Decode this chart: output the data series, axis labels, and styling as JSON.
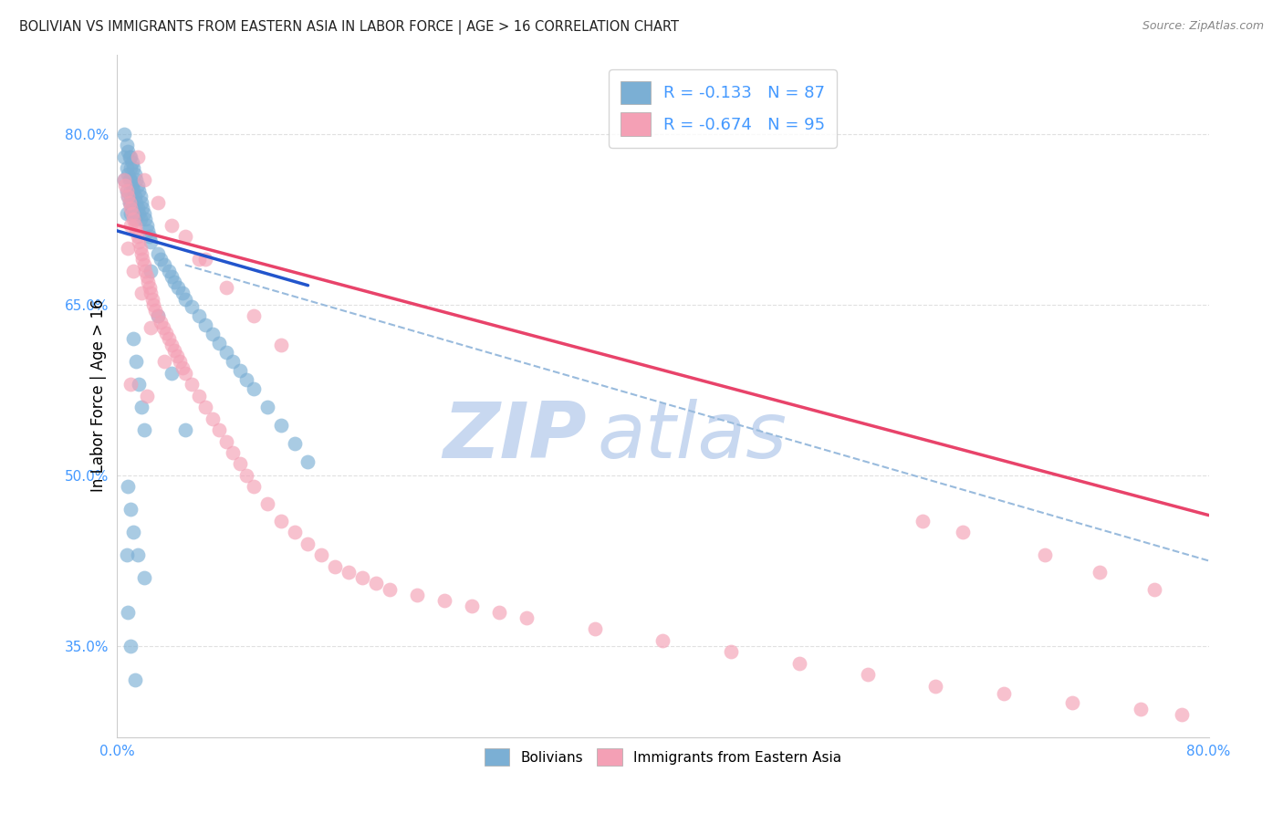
{
  "title": "BOLIVIAN VS IMMIGRANTS FROM EASTERN ASIA IN LABOR FORCE | AGE > 16 CORRELATION CHART",
  "source": "Source: ZipAtlas.com",
  "ylabel": "In Labor Force | Age > 16",
  "yticks": [
    "80.0%",
    "65.0%",
    "50.0%",
    "35.0%"
  ],
  "ytick_vals": [
    0.8,
    0.65,
    0.5,
    0.35
  ],
  "xlim": [
    0.0,
    0.8
  ],
  "ylim": [
    0.27,
    0.87
  ],
  "bolivian_R": -0.133,
  "bolivian_N": 87,
  "eastern_asia_R": -0.674,
  "eastern_asia_N": 95,
  "bolivian_color": "#7bafd4",
  "eastern_asia_color": "#f4a0b5",
  "bolivian_line_color": "#2255cc",
  "eastern_asia_line_color": "#e8436a",
  "dashed_line_color": "#99bbdd",
  "watermark_zip": "ZIP",
  "watermark_atlas": "atlas",
  "watermark_color": "#c8d8f0",
  "grid_color": "#dddddd",
  "background_color": "#ffffff",
  "title_color": "#222222",
  "tick_color": "#4499ff",
  "blue_line_x": [
    0.0,
    0.14
  ],
  "blue_line_y": [
    0.715,
    0.667
  ],
  "pink_line_x": [
    0.0,
    0.8
  ],
  "pink_line_y": [
    0.72,
    0.465
  ],
  "dashed_line_x": [
    0.05,
    0.8
  ],
  "dashed_line_y": [
    0.685,
    0.425
  ],
  "bolivian_x": [
    0.005,
    0.005,
    0.005,
    0.007,
    0.007,
    0.007,
    0.007,
    0.008,
    0.008,
    0.008,
    0.009,
    0.009,
    0.009,
    0.01,
    0.01,
    0.01,
    0.01,
    0.01,
    0.01,
    0.011,
    0.011,
    0.011,
    0.012,
    0.012,
    0.012,
    0.013,
    0.013,
    0.013,
    0.014,
    0.014,
    0.015,
    0.015,
    0.016,
    0.016,
    0.017,
    0.017,
    0.018,
    0.019,
    0.02,
    0.021,
    0.022,
    0.023,
    0.024,
    0.025,
    0.03,
    0.032,
    0.035,
    0.038,
    0.04,
    0.042,
    0.045,
    0.048,
    0.05,
    0.055,
    0.06,
    0.065,
    0.07,
    0.075,
    0.08,
    0.085,
    0.09,
    0.095,
    0.1,
    0.11,
    0.12,
    0.13,
    0.14,
    0.012,
    0.014,
    0.016,
    0.018,
    0.02,
    0.008,
    0.01,
    0.012,
    0.015,
    0.02,
    0.025,
    0.03,
    0.04,
    0.05,
    0.008,
    0.01,
    0.013,
    0.007
  ],
  "bolivian_y": [
    0.8,
    0.78,
    0.76,
    0.79,
    0.77,
    0.75,
    0.73,
    0.785,
    0.765,
    0.745,
    0.78,
    0.76,
    0.74,
    0.78,
    0.77,
    0.76,
    0.75,
    0.74,
    0.73,
    0.775,
    0.755,
    0.735,
    0.77,
    0.75,
    0.73,
    0.765,
    0.745,
    0.725,
    0.76,
    0.74,
    0.755,
    0.735,
    0.75,
    0.73,
    0.745,
    0.725,
    0.74,
    0.735,
    0.73,
    0.725,
    0.72,
    0.715,
    0.71,
    0.705,
    0.695,
    0.69,
    0.685,
    0.68,
    0.675,
    0.67,
    0.665,
    0.66,
    0.655,
    0.648,
    0.64,
    0.632,
    0.624,
    0.616,
    0.608,
    0.6,
    0.592,
    0.584,
    0.576,
    0.56,
    0.544,
    0.528,
    0.512,
    0.62,
    0.6,
    0.58,
    0.56,
    0.54,
    0.49,
    0.47,
    0.45,
    0.43,
    0.41,
    0.68,
    0.64,
    0.59,
    0.54,
    0.38,
    0.35,
    0.32,
    0.43
  ],
  "eastern_asia_x": [
    0.005,
    0.006,
    0.007,
    0.008,
    0.009,
    0.01,
    0.01,
    0.011,
    0.012,
    0.013,
    0.014,
    0.015,
    0.016,
    0.017,
    0.018,
    0.019,
    0.02,
    0.021,
    0.022,
    0.023,
    0.024,
    0.025,
    0.026,
    0.027,
    0.028,
    0.03,
    0.032,
    0.034,
    0.036,
    0.038,
    0.04,
    0.042,
    0.044,
    0.046,
    0.048,
    0.05,
    0.055,
    0.06,
    0.065,
    0.07,
    0.075,
    0.08,
    0.085,
    0.09,
    0.095,
    0.1,
    0.11,
    0.12,
    0.13,
    0.14,
    0.15,
    0.16,
    0.17,
    0.18,
    0.19,
    0.2,
    0.22,
    0.24,
    0.26,
    0.28,
    0.3,
    0.35,
    0.4,
    0.45,
    0.5,
    0.55,
    0.6,
    0.65,
    0.7,
    0.75,
    0.78,
    0.008,
    0.012,
    0.018,
    0.025,
    0.035,
    0.05,
    0.065,
    0.08,
    0.1,
    0.12,
    0.015,
    0.02,
    0.03,
    0.04,
    0.06,
    0.59,
    0.62,
    0.68,
    0.72,
    0.76,
    0.01,
    0.022
  ],
  "eastern_asia_y": [
    0.76,
    0.755,
    0.75,
    0.745,
    0.74,
    0.735,
    0.72,
    0.73,
    0.725,
    0.72,
    0.715,
    0.71,
    0.705,
    0.7,
    0.695,
    0.69,
    0.685,
    0.68,
    0.675,
    0.67,
    0.665,
    0.66,
    0.655,
    0.65,
    0.645,
    0.64,
    0.635,
    0.63,
    0.625,
    0.62,
    0.615,
    0.61,
    0.605,
    0.6,
    0.595,
    0.59,
    0.58,
    0.57,
    0.56,
    0.55,
    0.54,
    0.53,
    0.52,
    0.51,
    0.5,
    0.49,
    0.475,
    0.46,
    0.45,
    0.44,
    0.43,
    0.42,
    0.415,
    0.41,
    0.405,
    0.4,
    0.395,
    0.39,
    0.385,
    0.38,
    0.375,
    0.365,
    0.355,
    0.345,
    0.335,
    0.325,
    0.315,
    0.308,
    0.3,
    0.295,
    0.29,
    0.7,
    0.68,
    0.66,
    0.63,
    0.6,
    0.71,
    0.69,
    0.665,
    0.64,
    0.615,
    0.78,
    0.76,
    0.74,
    0.72,
    0.69,
    0.46,
    0.45,
    0.43,
    0.415,
    0.4,
    0.58,
    0.57
  ]
}
